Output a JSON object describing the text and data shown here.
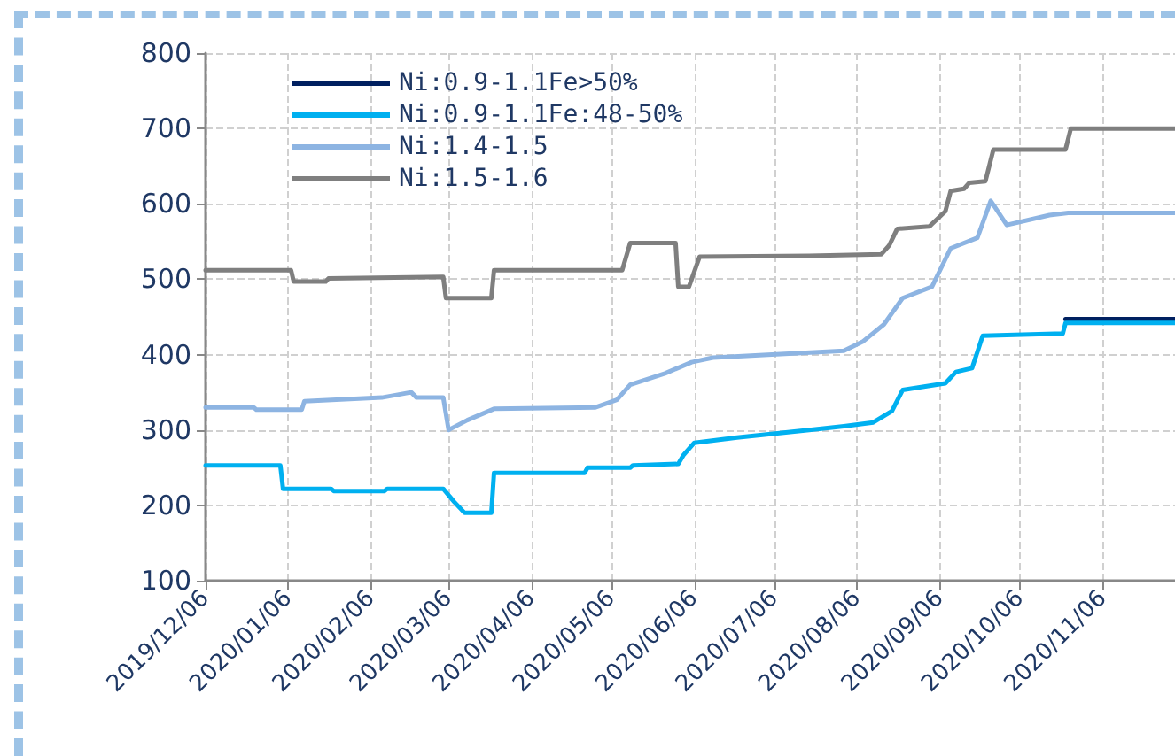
{
  "chart_data": {
    "type": "line",
    "xlim": [
      "2019-12-06",
      "2020-12-03"
    ],
    "xticks": [
      {
        "value": "2019-12-06",
        "label": "2019/12/06"
      },
      {
        "value": "2020-01-06",
        "label": "2020/01/06"
      },
      {
        "value": "2020-02-06",
        "label": "2020/02/06"
      },
      {
        "value": "2020-03-06",
        "label": "2020/03/06"
      },
      {
        "value": "2020-04-06",
        "label": "2020/04/06"
      },
      {
        "value": "2020-05-06",
        "label": "2020/05/06"
      },
      {
        "value": "2020-06-06",
        "label": "2020/06/06"
      },
      {
        "value": "2020-07-06",
        "label": "2020/07/06"
      },
      {
        "value": "2020-08-06",
        "label": "2020/08/06"
      },
      {
        "value": "2020-09-06",
        "label": "2020/09/06"
      },
      {
        "value": "2020-10-06",
        "label": "2020/10/06"
      },
      {
        "value": "2020-11-06",
        "label": "2020/11/06"
      }
    ],
    "ylim": [
      100,
      800
    ],
    "yticks": [
      100,
      200,
      300,
      400,
      500,
      600,
      700,
      800
    ],
    "grid": true,
    "legend": "top left",
    "marker": "none",
    "line_style": "solid",
    "series": [
      {
        "name": "Ni:0.9-1.1Fe>50%",
        "color": "#002060",
        "x": [
          "2020-10-23",
          "2020-12-03"
        ],
        "values": [
          447,
          447
        ]
      },
      {
        "name": "Ni:0.9-1.1Fe:48-50%",
        "color": "#00b0f0",
        "x": [
          "2019-12-06",
          "2020-01-03",
          "2020-01-04",
          "2020-01-22",
          "2020-01-23",
          "2020-02-11",
          "2020-02-12",
          "2020-03-04",
          "2020-03-08",
          "2020-03-12",
          "2020-03-22",
          "2020-03-23",
          "2020-04-26",
          "2020-04-27",
          "2020-05-13",
          "2020-05-14",
          "2020-05-31",
          "2020-06-02",
          "2020-06-06",
          "2020-06-22",
          "2020-07-19",
          "2020-08-01",
          "2020-08-12",
          "2020-08-19",
          "2020-08-23",
          "2020-09-08",
          "2020-09-12",
          "2020-09-18",
          "2020-09-22",
          "2020-10-22",
          "2020-10-23",
          "2020-12-03"
        ],
        "values": [
          253,
          253,
          222,
          222,
          219,
          219,
          222,
          222,
          205,
          190,
          190,
          243,
          243,
          250,
          250,
          253,
          255,
          267,
          283,
          290,
          300,
          305,
          310,
          325,
          353,
          362,
          377,
          382,
          425,
          428,
          442,
          442
        ]
      },
      {
        "name": "Ni:1.4-1.5",
        "color": "#8db4e2",
        "x": [
          "2019-12-06",
          "2019-12-24",
          "2019-12-25",
          "2020-01-11",
          "2020-01-12",
          "2020-02-10",
          "2020-02-21",
          "2020-02-23",
          "2020-03-04",
          "2020-03-06",
          "2020-03-13",
          "2020-03-23",
          "2020-04-30",
          "2020-05-08",
          "2020-05-13",
          "2020-05-26",
          "2020-06-05",
          "2020-06-13",
          "2020-08-01",
          "2020-08-08",
          "2020-08-16",
          "2020-08-23",
          "2020-09-03",
          "2020-09-10",
          "2020-09-20",
          "2020-09-25",
          "2020-10-01",
          "2020-10-17",
          "2020-10-24",
          "2020-12-03"
        ],
        "values": [
          330,
          330,
          327,
          327,
          338,
          343,
          350,
          343,
          343,
          300,
          313,
          328,
          330,
          340,
          360,
          375,
          390,
          396,
          405,
          417,
          440,
          475,
          490,
          541,
          555,
          604,
          572,
          585,
          588,
          588
        ]
      },
      {
        "name": "Ni:1.5-1.6",
        "color": "#7f7f7f",
        "x": [
          "2019-12-06",
          "2020-01-07",
          "2020-01-08",
          "2020-01-20",
          "2020-01-21",
          "2020-03-04",
          "2020-03-05",
          "2020-03-22",
          "2020-03-23",
          "2020-05-10",
          "2020-05-13",
          "2020-05-30",
          "2020-05-31",
          "2020-06-04",
          "2020-06-08",
          "2020-07-19",
          "2020-08-15",
          "2020-08-18",
          "2020-08-21",
          "2020-09-02",
          "2020-09-08",
          "2020-09-10",
          "2020-09-15",
          "2020-09-17",
          "2020-09-23",
          "2020-09-26",
          "2020-10-23",
          "2020-10-25",
          "2020-12-03"
        ],
        "values": [
          512,
          512,
          497,
          497,
          501,
          503,
          475,
          475,
          512,
          512,
          548,
          548,
          490,
          490,
          530,
          531,
          533,
          545,
          567,
          570,
          590,
          617,
          620,
          628,
          630,
          672,
          672,
          700,
          700
        ]
      }
    ]
  }
}
